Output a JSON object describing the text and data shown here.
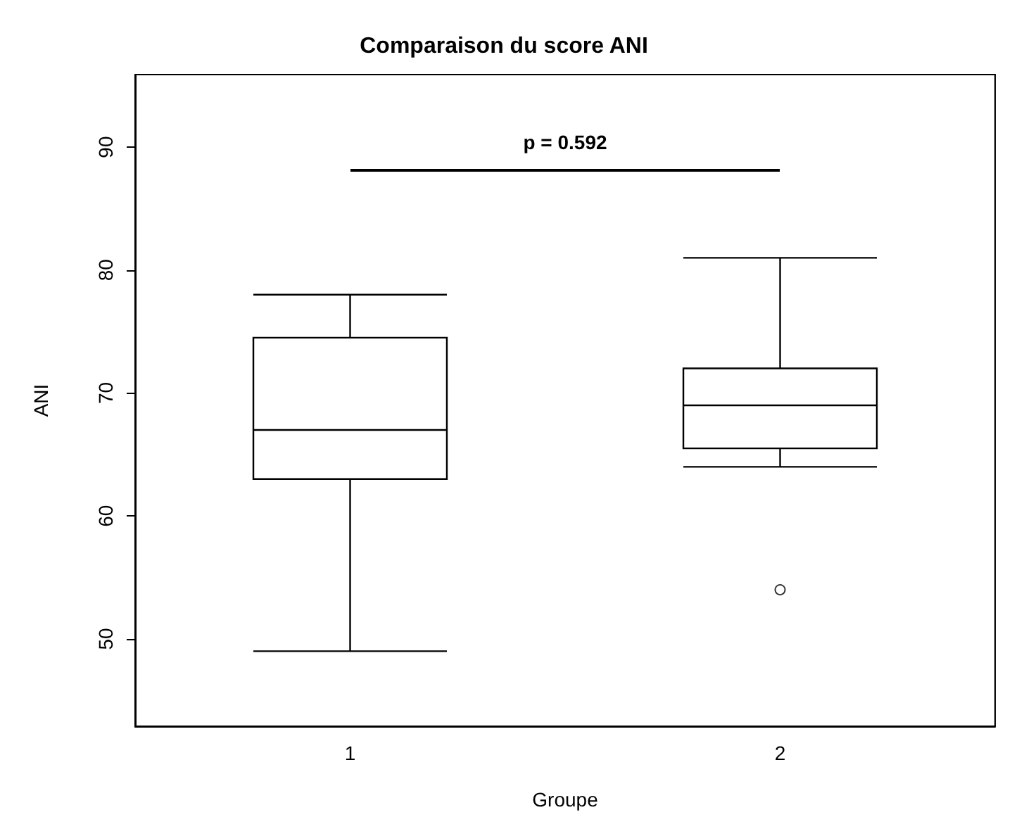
{
  "chart_data": {
    "type": "box",
    "title": "Comparaison du score ANI",
    "xlabel": "Groupe",
    "ylabel": "ANI",
    "categories": [
      "1",
      "2"
    ],
    "boxes": [
      {
        "low": 49,
        "q1": 63,
        "median": 67,
        "q3": 74.5,
        "high": 78
      },
      {
        "low": 64,
        "q1": 65.5,
        "median": 69,
        "q3": 72,
        "high": 81,
        "outliers": [
          54
        ]
      }
    ],
    "ylim": [
      42.9,
      95.9
    ],
    "yticks": [
      50,
      60,
      70,
      80,
      90
    ],
    "grid": false,
    "marker": "circle",
    "annotations": [
      "p = 0.592"
    ]
  }
}
